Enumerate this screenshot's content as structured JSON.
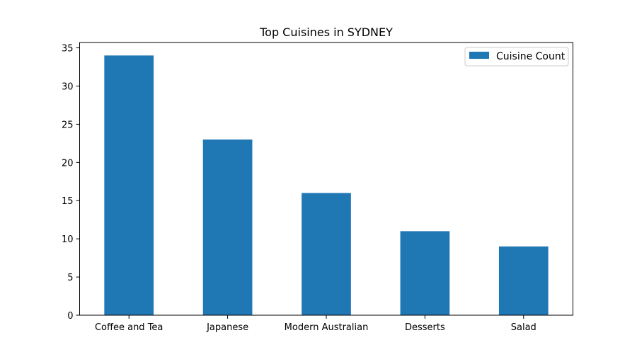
{
  "chart_data": {
    "type": "bar",
    "title": "Top Cuisines in SYDNEY",
    "xlabel": "",
    "ylabel": "",
    "categories": [
      "Coffee and Tea",
      "Japanese",
      "Modern Australian",
      "Desserts",
      "Salad"
    ],
    "series": [
      {
        "name": "Cuisine Count",
        "values": [
          34,
          23,
          16,
          11,
          9
        ],
        "color": "#1f77b4"
      }
    ],
    "ylim": [
      0,
      35.7
    ],
    "yticks": [
      0,
      5,
      10,
      15,
      20,
      25,
      30,
      35
    ],
    "grid": false,
    "legend_position": "top-right"
  }
}
